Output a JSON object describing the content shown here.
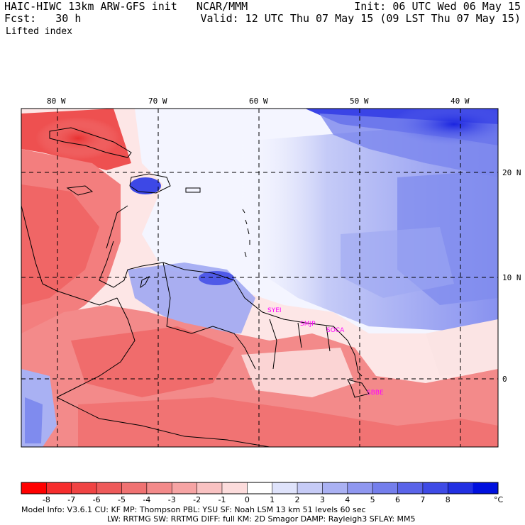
{
  "header": {
    "line1_left": "HAIC-HIWC 13km ARW-GFS init   NCAR/MMM",
    "line1_right": "Init: 06 UTC Wed 06 May 15",
    "line2_left": "Fcst:   30 h",
    "line2_right": "Valid: 12 UTC Thu 07 May 15 (09 LST Thu 07 May 15)",
    "field": "Lifted index"
  },
  "map": {
    "lon_labels": [
      "80 W",
      "70 W",
      "60 W",
      "50 W",
      "40 W"
    ],
    "lat_labels": [
      "20 N",
      "10 N",
      "0"
    ],
    "stations": [
      "SYEI",
      "SMJP",
      "SOCA",
      "SBBE"
    ],
    "colors": {
      "neg_strong": "#ee3b3b",
      "neg_mid": "#f07a7a",
      "neg_light": "#f7b8b8",
      "neutral": "#ffffff",
      "pos_light": "#c7cdf7",
      "pos_mid": "#7f8cf0",
      "pos_strong": "#2a34e6",
      "station": "#ff00ff"
    }
  },
  "colorbar": {
    "ticks": [
      "-8",
      "-7",
      "-6",
      "-5",
      "-4",
      "-3",
      "-2",
      "-1",
      "0",
      "1",
      "2",
      "3",
      "4",
      "5",
      "6",
      "7",
      "8"
    ],
    "unit": "°C",
    "colors": [
      "#ff0000",
      "#f62d2d",
      "#f04444",
      "#ee5a5a",
      "#f07272",
      "#f38a8a",
      "#f6a4a4",
      "#f9c2c2",
      "#fcdcdc",
      "#ffffff",
      "#dfe3fb",
      "#c6cbf6",
      "#aab1f3",
      "#8f97f0",
      "#747eec",
      "#5a64e9",
      "#3f4be6",
      "#2230e2",
      "#0010de"
    ]
  },
  "footer": {
    "line1": "Model Info: V3.6.1     CU: KF      MP: Thompson    PBL: YSU       SF: Noah LSM     13 km   51 levels  60 sec",
    "line2": "LW: RRTMG    SW: RRTMG   DIFF: full    KM: 2D Smagor DAMP: Rayleigh3  SFLAY: MM5"
  }
}
